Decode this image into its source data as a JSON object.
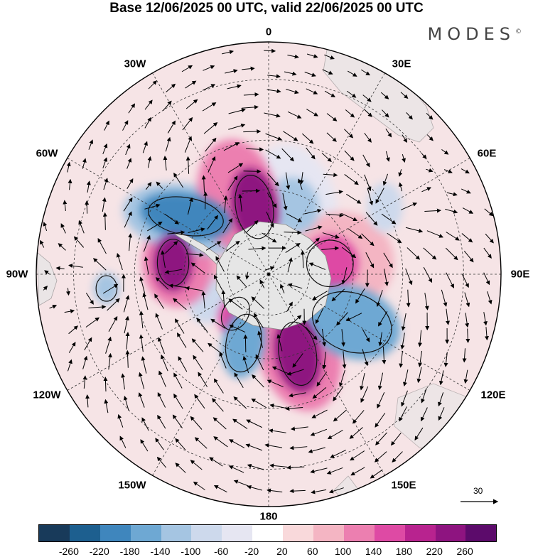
{
  "title": "Base 12/06/2025 00 UTC, valid 22/06/2025 00 UTC",
  "brand": "MODES",
  "brand_mark": "©",
  "longitudes": {
    "l0": "0",
    "l30e": "30E",
    "l60e": "60E",
    "l90e": "90E",
    "l120e": "120E",
    "l150e": "150E",
    "l180": "180",
    "l150w": "150W",
    "l120w": "120W",
    "l90w": "90W",
    "l60w": "60W",
    "l30w": "30W"
  },
  "colorbar": {
    "colors": [
      "#183a5a",
      "#1d5f8f",
      "#3f86bd",
      "#6ea8d3",
      "#a5c5e2",
      "#cdd9ec",
      "#e6e6f2",
      "#ffffff",
      "#f9d9db",
      "#f4b5c3",
      "#ec7fb0",
      "#de4aa4",
      "#b8238f",
      "#8e1480",
      "#5c0b6b"
    ],
    "ticks": [
      "-260",
      "-220",
      "-180",
      "-140",
      "-100",
      "-60",
      "-20",
      "20",
      "60",
      "100",
      "140",
      "180",
      "220",
      "260"
    ]
  },
  "reference_vector": "30",
  "anomalies": [
    {
      "lon": -12,
      "lat": -57,
      "value": 250,
      "rx": 32,
      "ry": 55,
      "rot": -10
    },
    {
      "lon": -22,
      "lat": -50,
      "value": 130,
      "rx": 55,
      "ry": 80,
      "rot": -10
    },
    {
      "lon": -55,
      "lat": -43,
      "value": -220,
      "rx": 65,
      "ry": 32,
      "rot": 10
    },
    {
      "lon": -55,
      "lat": -45,
      "value": -120,
      "rx": 95,
      "ry": 48,
      "rot": 10
    },
    {
      "lon": -83,
      "lat": -45,
      "value": 220,
      "rx": 27,
      "ry": 40,
      "rot": 0
    },
    {
      "lon": -83,
      "lat": -47,
      "value": 110,
      "rx": 50,
      "ry": 62,
      "rot": 0
    },
    {
      "lon": -95,
      "lat": -20,
      "value": -140,
      "rx": 18,
      "ry": 22,
      "rot": 0
    },
    {
      "lon": -110,
      "lat": -60,
      "value": -80,
      "rx": 30,
      "ry": 40,
      "rot": 20
    },
    {
      "lon": -140,
      "lat": -65,
      "value": 140,
      "rx": 22,
      "ry": 30,
      "rot": 30
    },
    {
      "lon": -160,
      "lat": -55,
      "value": -160,
      "rx": 30,
      "ry": 50,
      "rot": 10
    },
    {
      "lon": 160,
      "lat": -50,
      "value": 220,
      "rx": 32,
      "ry": 55,
      "rot": -10
    },
    {
      "lon": 158,
      "lat": -52,
      "value": 120,
      "rx": 58,
      "ry": 90,
      "rot": -15
    },
    {
      "lon": 120,
      "lat": -45,
      "value": -150,
      "rx": 70,
      "ry": 50,
      "rot": 20
    },
    {
      "lon": 80,
      "lat": -60,
      "value": 140,
      "rx": 40,
      "ry": 40,
      "rot": 0
    },
    {
      "lon": 80,
      "lat": -55,
      "value": 60,
      "rx": 75,
      "ry": 70,
      "rot": 0
    },
    {
      "lon": 20,
      "lat": -55,
      "value": -120,
      "rx": 35,
      "ry": 40,
      "rot": -20
    },
    {
      "lon": 20,
      "lat": -52,
      "value": -50,
      "rx": 55,
      "ry": 80,
      "rot": -20
    },
    {
      "lon": 60,
      "lat": -30,
      "value": -100,
      "rx": 25,
      "ry": 35,
      "rot": 0
    },
    {
      "lon": -80,
      "lat": -70,
      "value": 90,
      "rx": 28,
      "ry": 22,
      "rot": 0
    },
    {
      "lon": 45,
      "lat": -62,
      "value": 50,
      "rx": 35,
      "ry": 20,
      "rot": 20
    }
  ]
}
